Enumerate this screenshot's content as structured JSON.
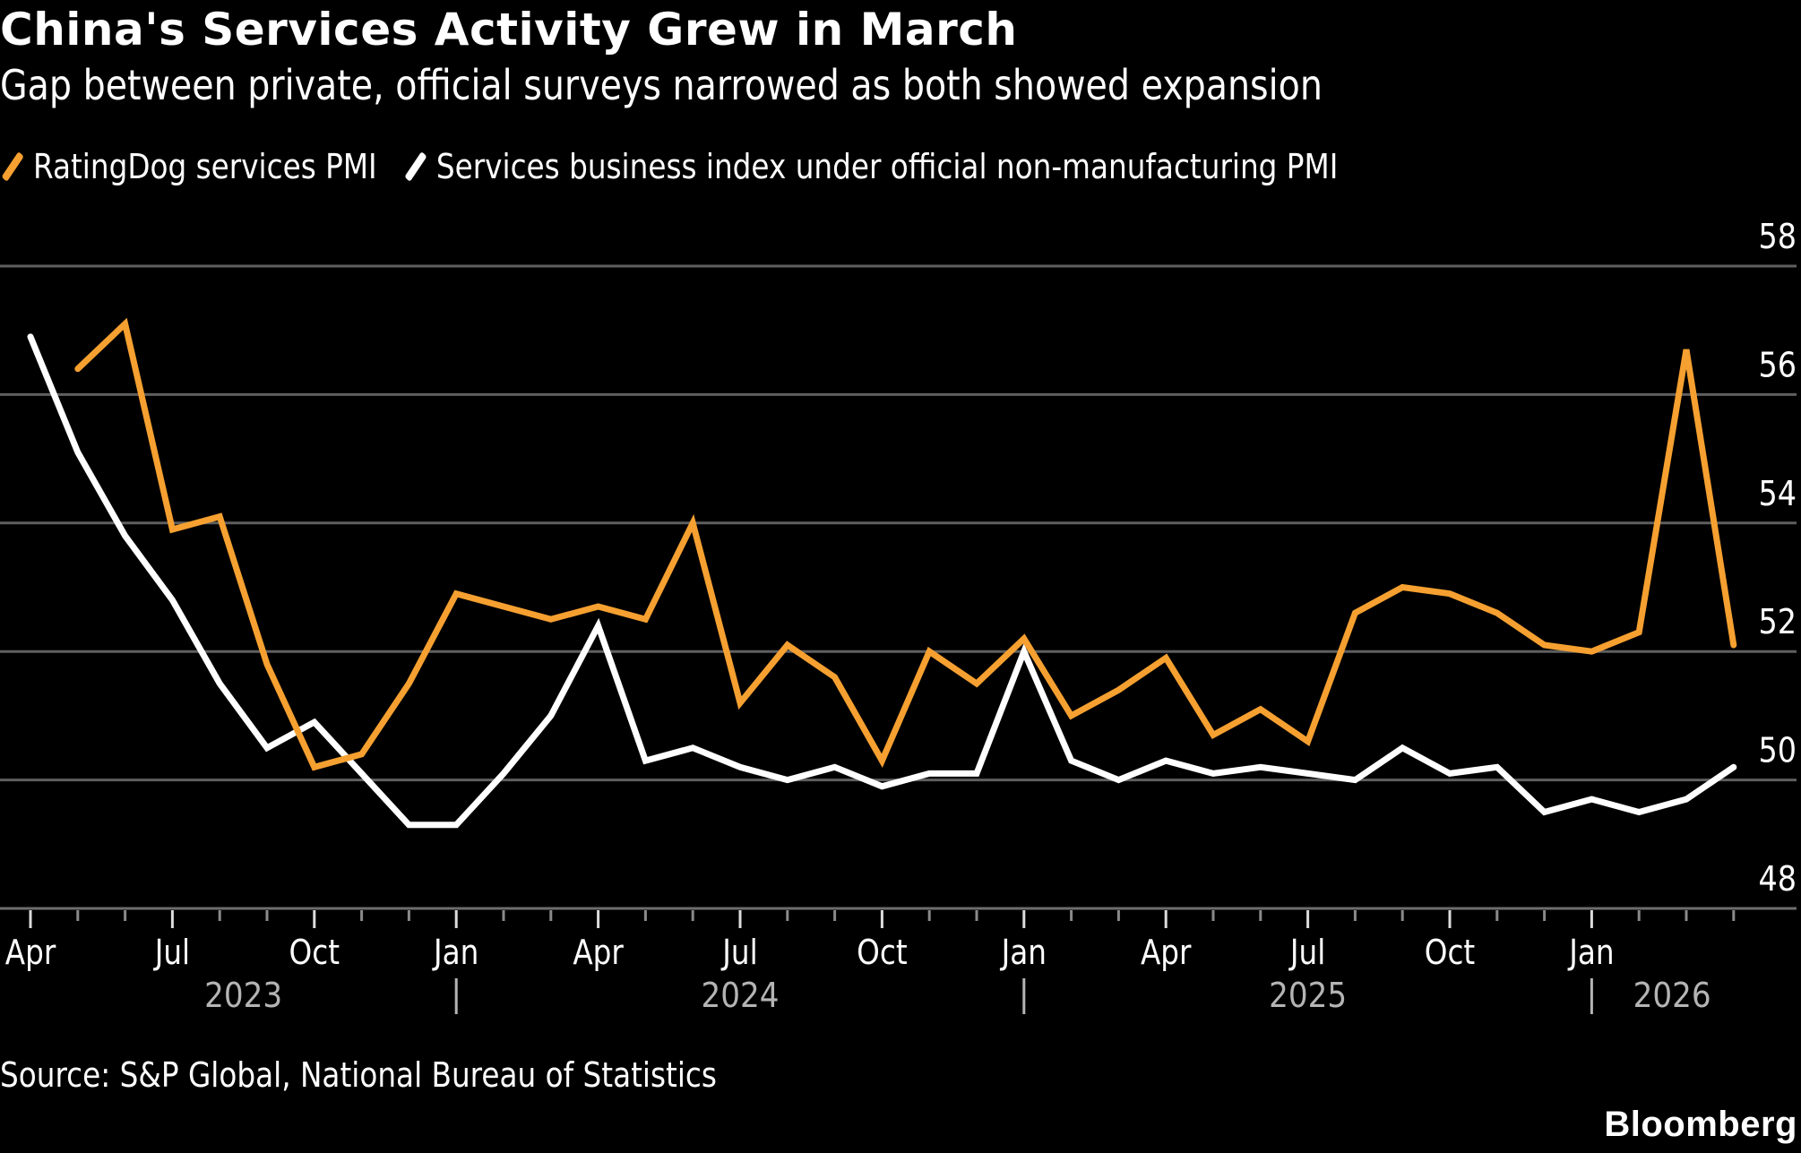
{
  "header": {
    "title": "China's Services Activity Grew in March",
    "subtitle": "Gap between private, official surveys narrowed as both showed expansion"
  },
  "legend": [
    {
      "label": "RatingDog services PMI",
      "color": "#F5A030"
    },
    {
      "label": "Services business index under official non-manufacturing PMI",
      "color": "#FFFFFF"
    }
  ],
  "footer": {
    "source": "Source: S&P Global, National Bureau of Statistics",
    "brand": "Bloomberg"
  },
  "chart_data": {
    "type": "line",
    "title": "China's Services Activity Grew in March",
    "subtitle": "Gap between private, official surveys narrowed as both showed expansion",
    "xlabel": "",
    "ylabel": "",
    "ylim": [
      48,
      58
    ],
    "yticks": [
      48,
      50,
      52,
      54,
      56,
      58
    ],
    "y_axis_side": "right",
    "grid": true,
    "legend_position": "top-left",
    "x": [
      "2023-03",
      "2023-04",
      "2023-05",
      "2023-06",
      "2023-07",
      "2023-08",
      "2023-09",
      "2023-10",
      "2023-11",
      "2023-12",
      "2024-01",
      "2024-02",
      "2024-03",
      "2024-04",
      "2024-05",
      "2024-06",
      "2024-07",
      "2024-08",
      "2024-09",
      "2024-10",
      "2024-11",
      "2024-12",
      "2025-01",
      "2025-02",
      "2025-03",
      "2025-04",
      "2025-05",
      "2025-06",
      "2025-07",
      "2025-08",
      "2025-09",
      "2025-10",
      "2025-11",
      "2025-12",
      "2026-01",
      "2026-02",
      "2026-03"
    ],
    "x_tick_labels": [
      {
        "label": "Apr",
        "index": 0
      },
      {
        "label": "Jul",
        "index": 3
      },
      {
        "label": "Oct",
        "index": 6
      },
      {
        "label": "Jan",
        "index": 9
      },
      {
        "label": "Apr",
        "index": 12
      },
      {
        "label": "Jul",
        "index": 15
      },
      {
        "label": "Oct",
        "index": 18
      },
      {
        "label": "Jan",
        "index": 21
      },
      {
        "label": "Apr",
        "index": 24
      },
      {
        "label": "Jul",
        "index": 27
      },
      {
        "label": "Oct",
        "index": 30
      },
      {
        "label": "Jan",
        "index": 33
      }
    ],
    "year_labels": [
      {
        "label": "2023",
        "index": 4.5
      },
      {
        "label": "2024",
        "index": 15
      },
      {
        "label": "2025",
        "index": 27
      },
      {
        "label": "2026",
        "index": 34.7
      }
    ],
    "year_dividers": [
      9,
      21,
      33
    ],
    "series": [
      {
        "name": "RatingDog services PMI",
        "color": "#F5A030",
        "values": [
          null,
          56.4,
          57.1,
          53.9,
          54.1,
          51.8,
          50.2,
          50.4,
          51.5,
          52.9,
          52.7,
          52.5,
          52.7,
          52.5,
          54.0,
          51.2,
          52.1,
          51.6,
          50.3,
          52.0,
          51.5,
          52.2,
          51.0,
          51.4,
          51.9,
          50.7,
          51.1,
          50.6,
          52.6,
          53.0,
          52.9,
          52.6,
          52.1,
          52.0,
          52.3,
          56.7,
          52.1
        ]
      },
      {
        "name": "Services business index under official non-manufacturing PMI",
        "color": "#FFFFFF",
        "values": [
          56.9,
          55.1,
          53.8,
          52.8,
          51.5,
          50.5,
          50.9,
          50.1,
          49.3,
          49.3,
          50.1,
          51.0,
          52.4,
          50.3,
          50.5,
          50.2,
          50.0,
          50.2,
          49.9,
          50.1,
          50.1,
          52.0,
          50.3,
          50.0,
          50.3,
          50.1,
          50.2,
          50.1,
          50.0,
          50.5,
          50.1,
          50.2,
          49.5,
          49.7,
          49.5,
          49.7,
          50.2
        ]
      }
    ]
  }
}
